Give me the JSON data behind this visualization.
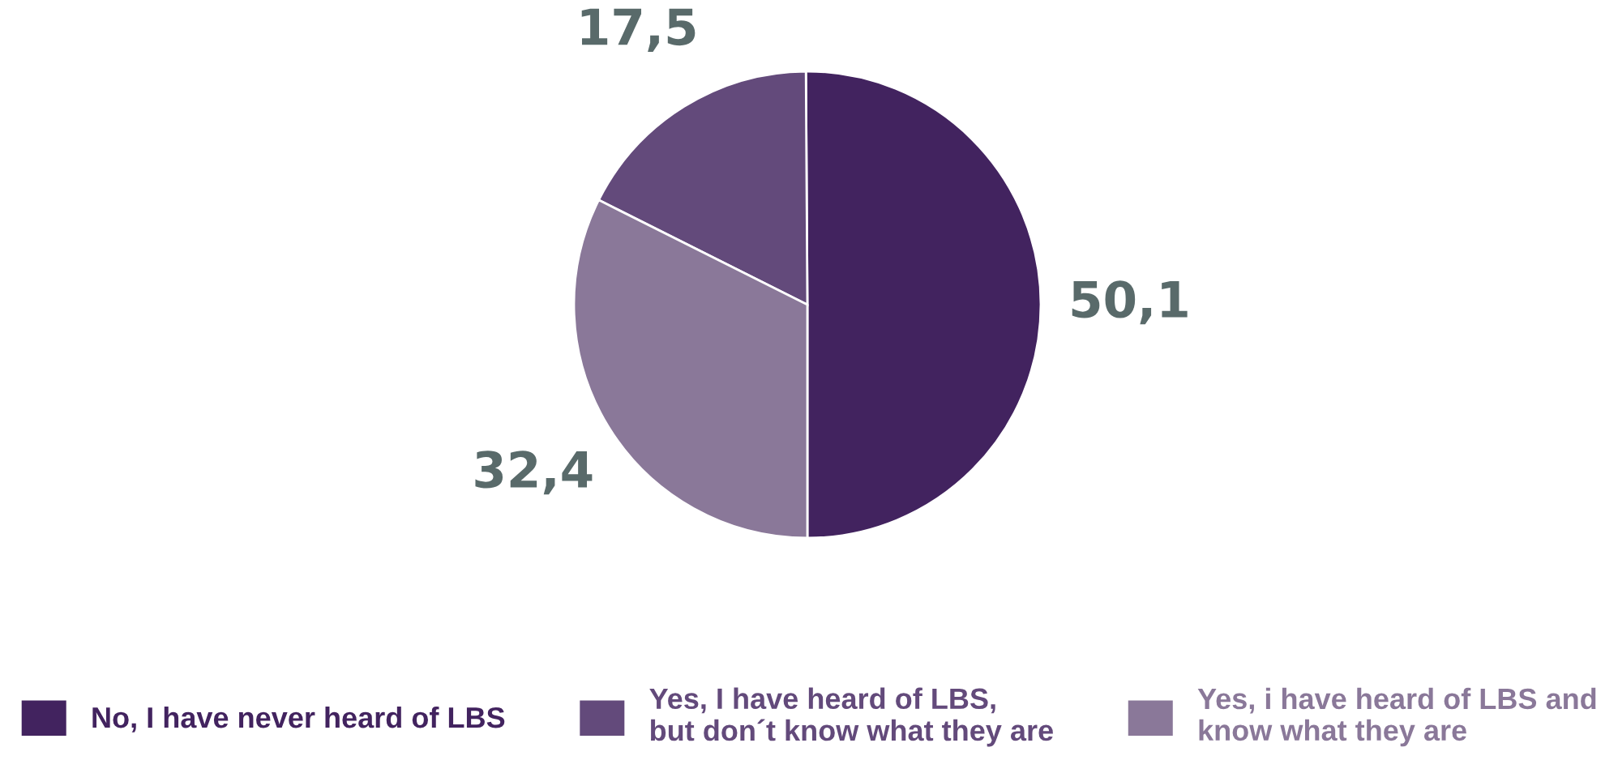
{
  "chart_data": {
    "type": "pie",
    "categories": [
      "No, I have never heard of LBS",
      "Yes, I have heard of LBS,\nbut don´t know what they are",
      "Yes, i have heard of LBS and\nknow what they are"
    ],
    "values": [
      50.1,
      17.5,
      32.4
    ],
    "value_labels": [
      "50,1",
      "17,5",
      "32,4"
    ],
    "colors": [
      "#42235f",
      "#634a7b",
      "#8a7899"
    ],
    "legend": "bottom"
  }
}
